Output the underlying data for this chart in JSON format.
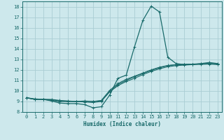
{
  "xlabel": "Humidex (Indice chaleur)",
  "xlim": [
    -0.5,
    23.5
  ],
  "ylim": [
    8,
    18.5
  ],
  "xticks": [
    0,
    1,
    2,
    3,
    4,
    5,
    6,
    7,
    8,
    9,
    10,
    11,
    12,
    13,
    14,
    15,
    16,
    17,
    18,
    19,
    20,
    21,
    22,
    23
  ],
  "yticks": [
    8,
    9,
    10,
    11,
    12,
    13,
    14,
    15,
    16,
    17,
    18
  ],
  "background_color": "#cde8ec",
  "grid_color": "#aacdd4",
  "line_color": "#1a6b6b",
  "line1_x": [
    0,
    1,
    2,
    3,
    4,
    5,
    6,
    7,
    8,
    9,
    10,
    11,
    12,
    13,
    14,
    15,
    16,
    17,
    18,
    19,
    20,
    21,
    22,
    23
  ],
  "line1_y": [
    9.35,
    9.2,
    9.2,
    9.05,
    8.85,
    8.8,
    8.8,
    8.7,
    8.4,
    8.5,
    9.6,
    11.2,
    11.5,
    14.2,
    16.7,
    18.05,
    17.5,
    13.2,
    12.6,
    12.5,
    12.5,
    12.6,
    12.7,
    12.6
  ],
  "line2_x": [
    0,
    1,
    2,
    3,
    4,
    5,
    6,
    7,
    8,
    9,
    10,
    11,
    12,
    13,
    14,
    15,
    16,
    17,
    18,
    19,
    20,
    21,
    22,
    23
  ],
  "line2_y": [
    9.35,
    9.2,
    9.2,
    9.1,
    9.0,
    9.0,
    9.0,
    9.0,
    9.0,
    9.05,
    9.9,
    10.5,
    10.9,
    11.2,
    11.55,
    11.85,
    12.1,
    12.3,
    12.4,
    12.45,
    12.5,
    12.52,
    12.55,
    12.5
  ],
  "line3_x": [
    0,
    1,
    2,
    3,
    4,
    5,
    6,
    7,
    8,
    9,
    10,
    11,
    12,
    13,
    14,
    15,
    16,
    17,
    18,
    19,
    20,
    21,
    22,
    23
  ],
  "line3_y": [
    9.35,
    9.2,
    9.2,
    9.15,
    9.05,
    9.0,
    9.0,
    8.95,
    8.9,
    9.0,
    9.95,
    10.6,
    11.0,
    11.35,
    11.65,
    11.95,
    12.2,
    12.4,
    12.48,
    12.52,
    12.55,
    12.57,
    12.6,
    12.55
  ],
  "line4_x": [
    0,
    1,
    2,
    3,
    4,
    5,
    6,
    7,
    8,
    9,
    10,
    11,
    12,
    13,
    14,
    15,
    16,
    17,
    18,
    19,
    20,
    21,
    22,
    23
  ],
  "line4_y": [
    9.35,
    9.25,
    9.2,
    9.2,
    9.1,
    9.05,
    9.0,
    9.05,
    9.0,
    9.1,
    10.05,
    10.7,
    11.1,
    11.4,
    11.7,
    12.0,
    12.25,
    12.42,
    12.5,
    12.53,
    12.55,
    12.57,
    12.6,
    12.57
  ]
}
